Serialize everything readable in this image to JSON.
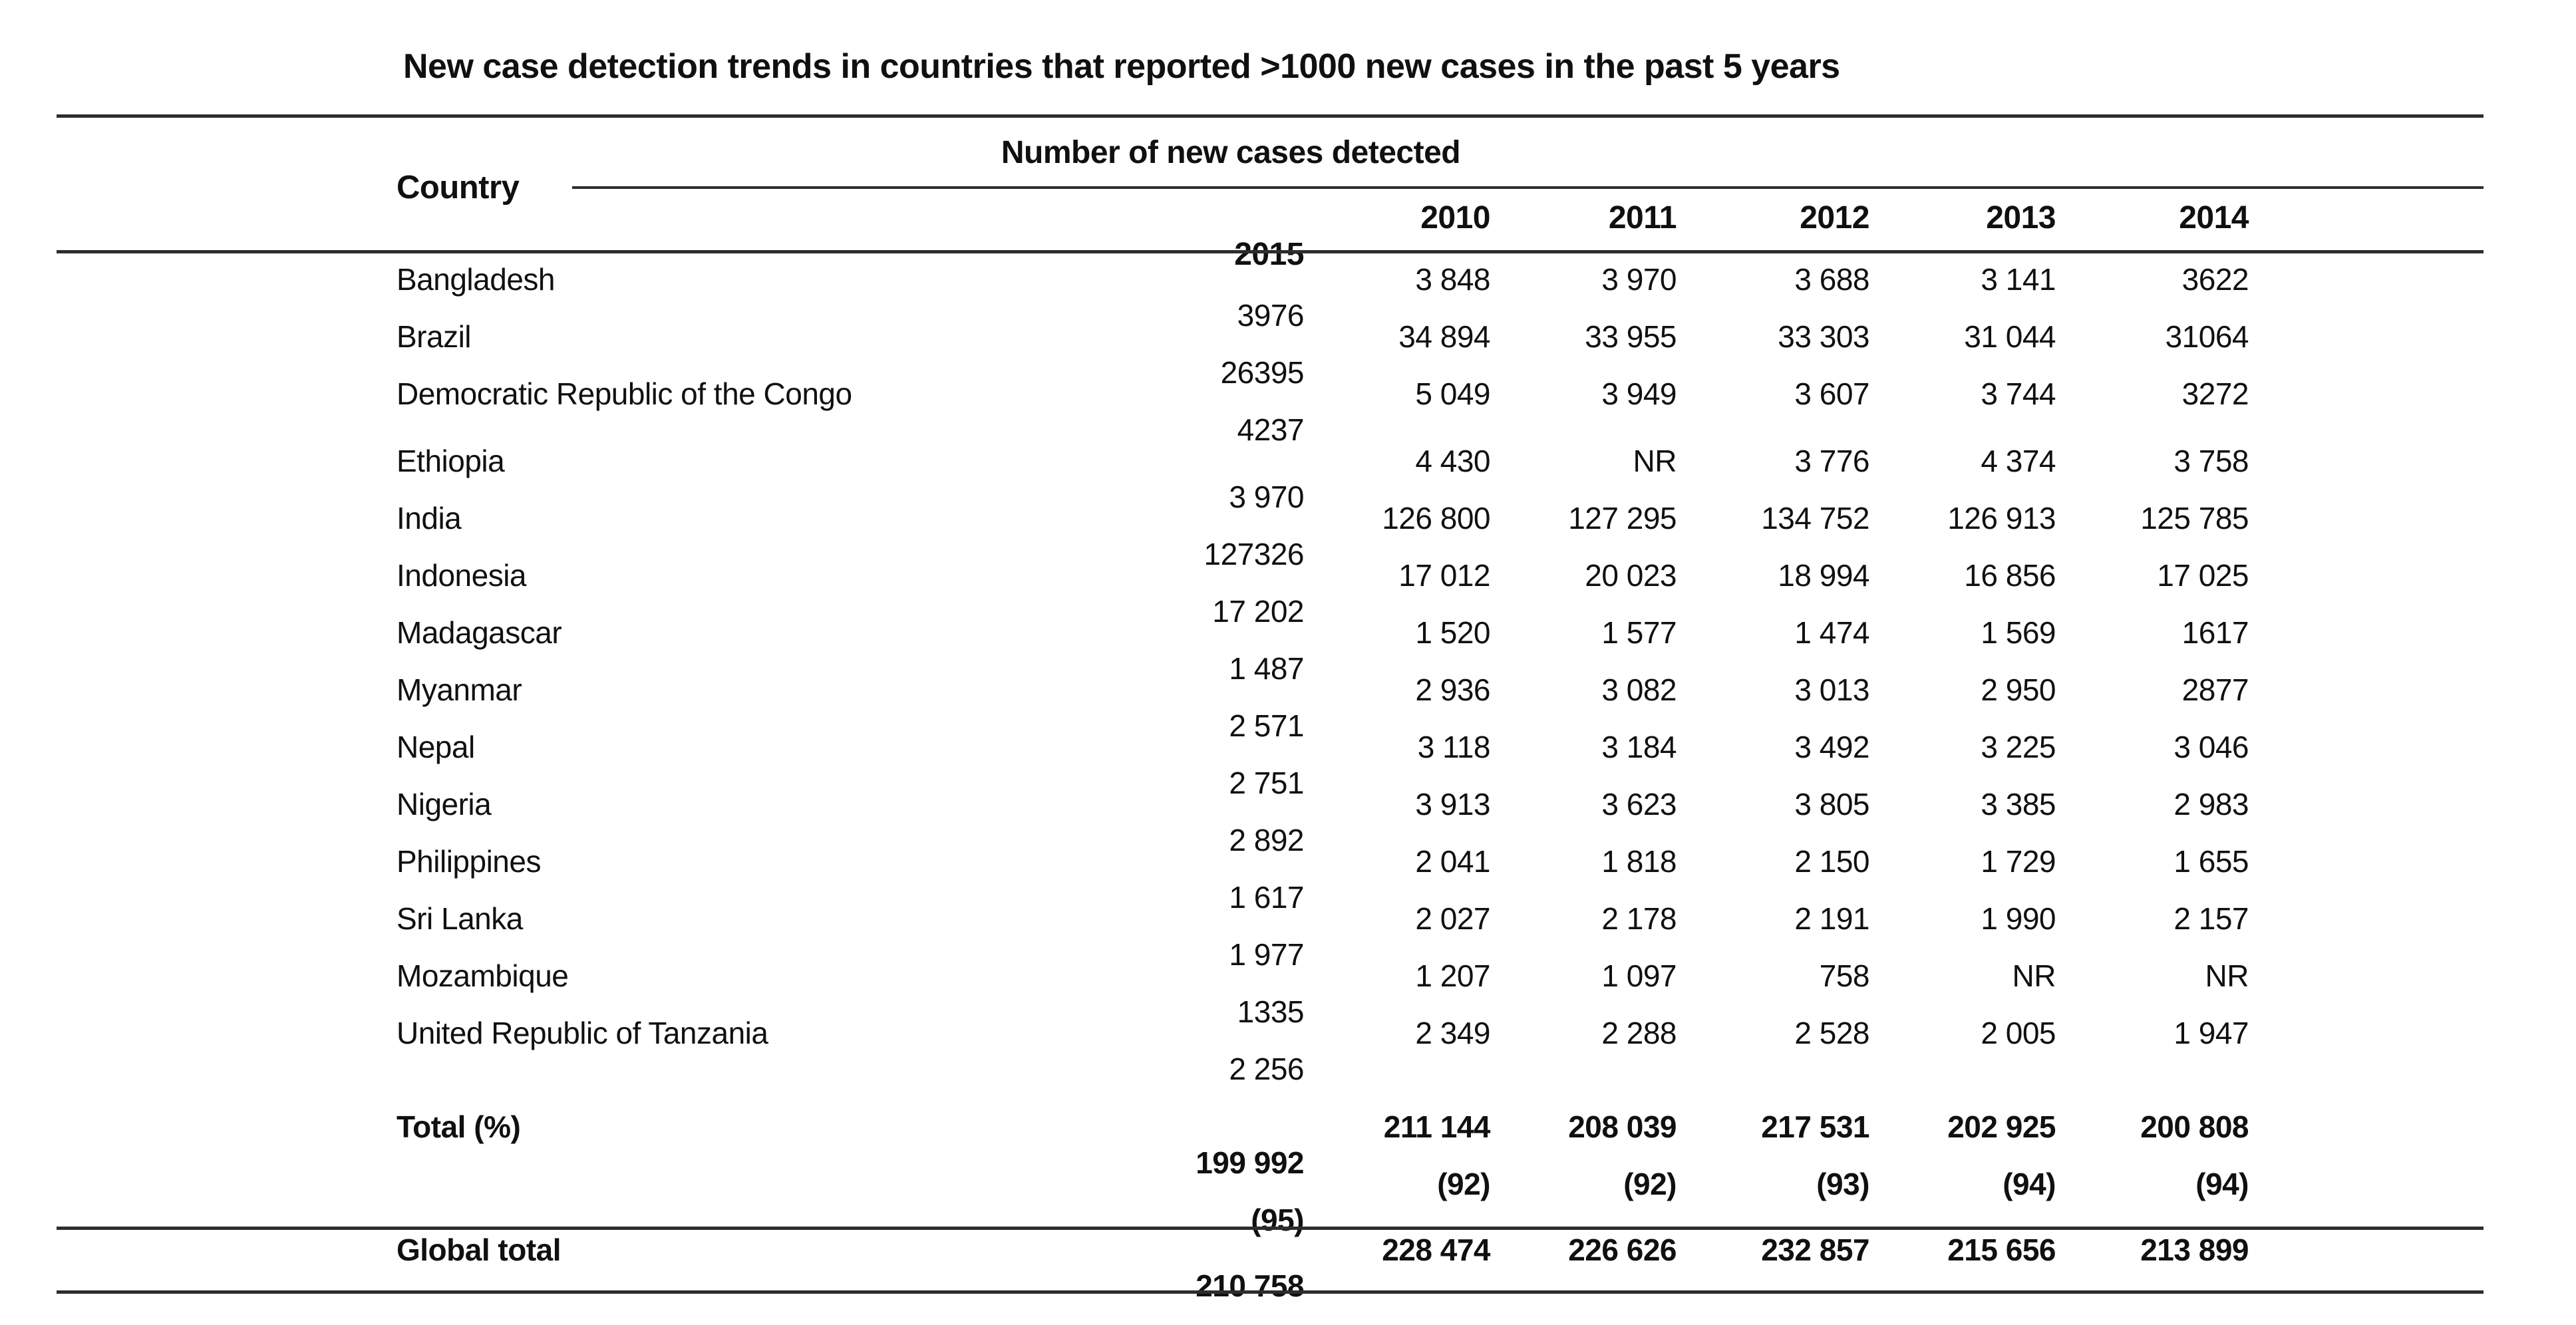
{
  "colors": {
    "background": "#ffffff",
    "text": "#101010",
    "rule": "#2d2d2d"
  },
  "title": "New case detection trends in countries that reported >1000 new cases in the past 5 years",
  "table": {
    "country_header": "Country",
    "group_header": "Number of new cases detected",
    "years": [
      "2010",
      "2011",
      "2012",
      "2013",
      "2014",
      "2015"
    ],
    "rows": [
      {
        "country": "Bangladesh",
        "values": [
          "3 848",
          "3 970",
          "3 688",
          "3 141",
          "3622",
          "3976"
        ]
      },
      {
        "country": "Brazil",
        "values": [
          "34 894",
          "33 955",
          "33 303",
          "31 044",
          "31064",
          "26395"
        ]
      },
      {
        "country": "Democratic Republic of the Congo",
        "values": [
          "5 049",
          "3 949",
          "3 607",
          "3 744",
          "3272",
          "4237"
        ]
      },
      {
        "country": "Ethiopia",
        "values": [
          "4 430",
          "NR",
          "3 776",
          "4 374",
          "3 758",
          "3 970"
        ]
      },
      {
        "country": "India",
        "values": [
          "126 800",
          "127 295",
          "134 752",
          "126 913",
          "125 785",
          "127326"
        ]
      },
      {
        "country": "Indonesia",
        "values": [
          "17 012",
          "20 023",
          "18 994",
          "16 856",
          "17 025",
          "17 202"
        ]
      },
      {
        "country": "Madagascar",
        "values": [
          "1 520",
          "1 577",
          "1 474",
          "1 569",
          "1617",
          "1 487"
        ]
      },
      {
        "country": "Myanmar",
        "values": [
          "2 936",
          "3 082",
          "3 013",
          "2 950",
          "2877",
          "2 571"
        ]
      },
      {
        "country": "Nepal",
        "values": [
          "3 118",
          "3 184",
          "3 492",
          "3 225",
          "3 046",
          "2 751"
        ]
      },
      {
        "country": "Nigeria",
        "values": [
          "3 913",
          "3 623",
          "3 805",
          "3 385",
          "2 983",
          "2 892"
        ]
      },
      {
        "country": "Philippines",
        "values": [
          "2 041",
          "1 818",
          "2 150",
          "1 729",
          "1 655",
          "1 617"
        ]
      },
      {
        "country": "Sri Lanka",
        "values": [
          "2 027",
          "2 178",
          "2 191",
          "1 990",
          "2 157",
          "1 977"
        ]
      },
      {
        "country": "Mozambique",
        "values": [
          "1 207",
          "1 097",
          "758",
          "NR",
          "NR",
          "1335"
        ]
      },
      {
        "country": "United Republic of Tanzania",
        "values": [
          "2 349",
          "2 288",
          "2 528",
          "2 005",
          "1 947",
          "2 256"
        ]
      }
    ],
    "total": {
      "label": "Total (%)",
      "values": [
        "211 144",
        "208 039",
        "217 531",
        "202 925",
        "200 808",
        "199 992"
      ],
      "percents": [
        "(92)",
        "(92)",
        "(93)",
        "(94)",
        "(94)",
        "(95)"
      ]
    },
    "global": {
      "label": "Global total",
      "values": [
        "228 474",
        "226 626",
        "232 857",
        "215 656",
        "213 899",
        "210 758"
      ]
    }
  }
}
